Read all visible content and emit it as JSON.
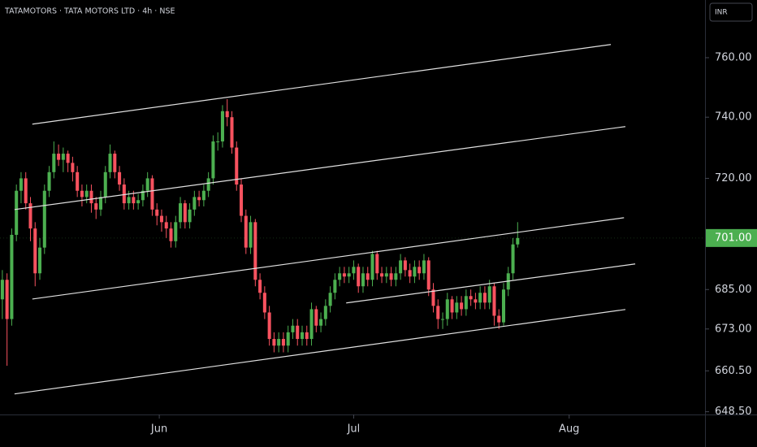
{
  "chart_data": {
    "type": "candlestick",
    "title": "TATAMOTORS · TATA MOTORS LTD · 4h · NSE",
    "currency": "INR",
    "log_scale": true,
    "up_color": "#4caf50",
    "down_color": "#f7525f",
    "line_color": "#e0e0e0",
    "xlim": [
      -0.5,
      150
    ],
    "xticks": [
      {
        "value": 33.5,
        "label": "Jun"
      },
      {
        "value": 75,
        "label": "Jul"
      },
      {
        "value": 121,
        "label": "Aug"
      }
    ],
    "ylim": [
      647.7,
      779.9
    ],
    "yticks": [
      {
        "value": 760,
        "label": "760.00"
      },
      {
        "value": 740,
        "label": "740.00"
      },
      {
        "value": 720,
        "label": "720.00"
      },
      {
        "value": 685,
        "label": "685.00"
      },
      {
        "value": 673,
        "label": "673.00"
      },
      {
        "value": 660.5,
        "label": "660.50"
      },
      {
        "value": 648.5,
        "label": "648.50"
      }
    ],
    "last_price": {
      "value": 701,
      "label": "701.00"
    },
    "open": [
      682,
      688,
      676,
      702,
      716,
      720,
      712,
      704,
      690,
      698,
      716,
      722,
      728,
      726,
      728,
      725,
      722,
      716,
      714,
      716,
      712,
      710,
      714,
      722,
      728,
      722,
      718,
      712,
      714,
      712,
      713,
      716,
      720,
      710,
      708,
      706,
      704,
      700,
      706,
      712,
      706,
      710,
      714,
      713,
      716,
      720,
      732,
      732,
      742,
      740,
      730,
      718,
      708,
      698,
      706,
      688,
      684,
      678,
      670,
      668,
      670,
      668,
      672,
      674,
      670,
      672,
      670,
      679,
      674,
      676,
      680,
      684,
      688,
      690,
      689,
      690,
      692,
      686,
      690,
      688,
      696,
      690,
      689,
      690,
      688,
      690,
      694,
      691,
      689,
      692,
      690,
      694,
      685,
      680,
      676,
      676,
      682,
      678,
      681,
      679,
      683,
      682,
      681,
      684,
      681,
      686,
      677,
      675,
      685,
      690,
      699
    ],
    "high": [
      691,
      690,
      704,
      718,
      722,
      722,
      714,
      706,
      701,
      718,
      724,
      732,
      731,
      730,
      729,
      727,
      724,
      718,
      718,
      718,
      714,
      716,
      724,
      731,
      729,
      724,
      720,
      716,
      716,
      715,
      718,
      722,
      721,
      712,
      710,
      708,
      706,
      708,
      714,
      713,
      712,
      716,
      716,
      718,
      722,
      734,
      735,
      744,
      746,
      742,
      732,
      720,
      710,
      708,
      707,
      690,
      686,
      680,
      672,
      672,
      672,
      674,
      676,
      676,
      674,
      674,
      681,
      680,
      678,
      682,
      686,
      690,
      692,
      692,
      692,
      694,
      693,
      692,
      692,
      697,
      697,
      692,
      692,
      692,
      692,
      696,
      695,
      693,
      694,
      694,
      696,
      695,
      687,
      682,
      678,
      684,
      683,
      683,
      683,
      685,
      685,
      684,
      686,
      686,
      688,
      687,
      679,
      687,
      692,
      701,
      706
    ],
    "low": [
      676,
      662,
      674,
      700,
      712,
      710,
      700,
      686,
      688,
      696,
      714,
      720,
      724,
      722,
      722,
      719,
      714,
      711,
      712,
      709,
      707,
      708,
      712,
      720,
      720,
      716,
      710,
      710,
      710,
      710,
      711,
      714,
      708,
      705,
      703,
      701,
      698,
      698,
      704,
      704,
      704,
      708,
      711,
      711,
      714,
      718,
      729,
      730,
      737,
      728,
      716,
      706,
      696,
      696,
      686,
      682,
      676,
      668,
      666,
      666,
      666,
      666,
      670,
      668,
      668,
      668,
      668,
      672,
      672,
      674,
      678,
      682,
      686,
      687,
      687,
      688,
      684,
      684,
      686,
      686,
      688,
      687,
      687,
      686,
      686,
      688,
      689,
      687,
      687,
      688,
      688,
      683,
      678,
      673,
      673,
      674,
      676,
      676,
      677,
      677,
      680,
      679,
      679,
      679,
      679,
      674,
      673,
      674,
      683,
      688,
      698
    ],
    "close": [
      688,
      676,
      702,
      716,
      720,
      712,
      704,
      690,
      698,
      716,
      722,
      728,
      726,
      728,
      725,
      722,
      716,
      714,
      716,
      712,
      710,
      714,
      722,
      728,
      722,
      718,
      712,
      714,
      712,
      713,
      716,
      720,
      710,
      708,
      706,
      704,
      700,
      706,
      712,
      706,
      710,
      714,
      713,
      716,
      720,
      732,
      732,
      742,
      740,
      730,
      718,
      708,
      698,
      706,
      688,
      684,
      678,
      670,
      668,
      670,
      668,
      672,
      674,
      670,
      672,
      670,
      679,
      674,
      676,
      680,
      684,
      688,
      690,
      689,
      690,
      692,
      686,
      690,
      688,
      696,
      690,
      689,
      690,
      688,
      690,
      694,
      691,
      689,
      692,
      690,
      694,
      685,
      680,
      676,
      676,
      682,
      678,
      681,
      679,
      683,
      682,
      681,
      684,
      681,
      686,
      677,
      675,
      685,
      690,
      699,
      701
    ],
    "lines": [
      {
        "x": [
          6.4,
          129.9
        ],
        "y": [
          737.7,
          764.5
        ]
      },
      {
        "x": [
          2.6,
          133.0
        ],
        "y": [
          710.0,
          736.9
        ]
      },
      {
        "x": [
          6.4,
          132.7
        ],
        "y": [
          682.1,
          707.4
        ]
      },
      {
        "x": [
          73.4,
          135.1
        ],
        "y": [
          680.9,
          692.9
        ]
      },
      {
        "x": [
          2.6,
          133.0
        ],
        "y": [
          653.7,
          678.9
        ]
      }
    ]
  }
}
